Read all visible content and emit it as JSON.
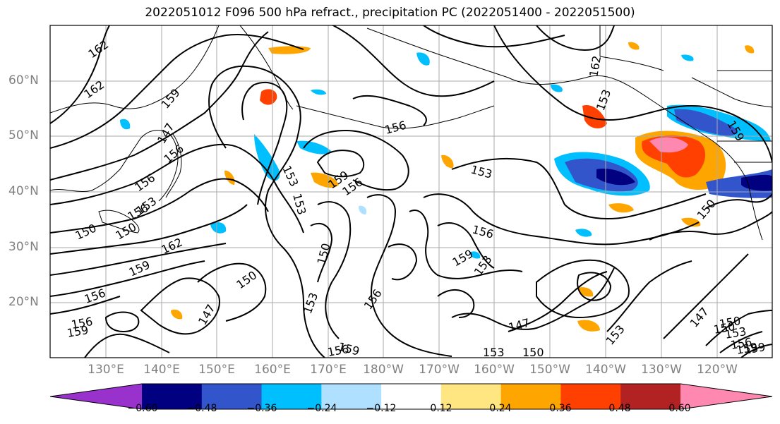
{
  "title": "2022051012 F096 500 hPa refract., precipitation PC (2022051400 - 2022051500)",
  "lat_labels": [
    "60°N",
    "50°N",
    "40°N",
    "30°N",
    "20°N"
  ],
  "lon_labels": [
    "130°E",
    "140°E",
    "150°E",
    "160°E",
    "170°E",
    "180°W",
    "170°W",
    "160°W",
    "150°W",
    "140°W",
    "130°W",
    "120°W"
  ],
  "colorbar": {
    "ticks": [
      "−0.60",
      "−0.48",
      "−0.36",
      "−0.24",
      "−0.12",
      "0.12",
      "0.24",
      "0.36",
      "0.48",
      "0.60"
    ],
    "colors": [
      "#9932cc",
      "#000080",
      "#3355cc",
      "#00bfff",
      "#b0e0ff",
      "#ffffff",
      "#ffe680",
      "#ffa500",
      "#ff4000",
      "#b22222",
      "#ff88b0"
    ]
  },
  "contour_labels": [
    "162",
    "162",
    "159",
    "156",
    "153",
    "150",
    "162",
    "159",
    "156",
    "159",
    "156",
    "153",
    "150",
    "147",
    "156",
    "159",
    "153",
    "156",
    "150",
    "153",
    "156",
    "153",
    "150",
    "147",
    "156",
    "153",
    "150",
    "147",
    "153",
    "156",
    "159",
    "162",
    "159",
    "159",
    "156",
    "153",
    "150",
    "150",
    "147",
    "156",
    "159",
    "156",
    "153",
    "150",
    "153",
    "159"
  ],
  "colors": {
    "contour": "#000000",
    "coast": "#000000",
    "grid": "#aaaaaa"
  }
}
